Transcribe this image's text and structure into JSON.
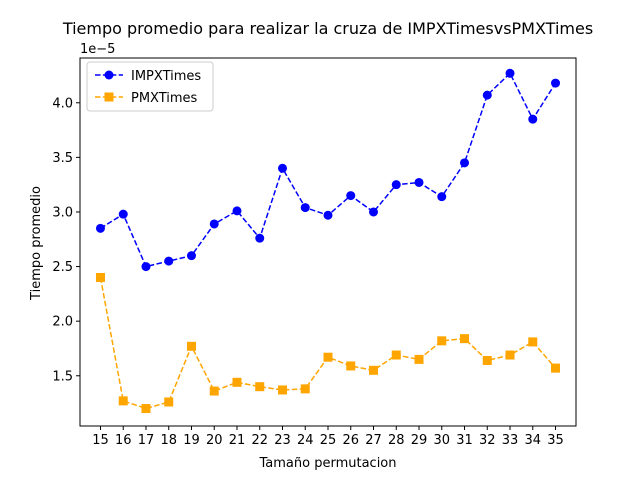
{
  "chart_data": {
    "type": "line",
    "title": "Tiempo promedio para realizar la cruza de IMPXTimesvsPMXTimes",
    "xlabel": "Tamaño permutacion",
    "ylabel": "Tiempo promedio",
    "y_offset_label": "1e−5",
    "x": [
      15,
      16,
      17,
      18,
      19,
      20,
      21,
      22,
      23,
      24,
      25,
      26,
      27,
      28,
      29,
      30,
      31,
      32,
      33,
      34,
      35
    ],
    "x_tick_labels": [
      "15",
      "16",
      "17",
      "18",
      "19",
      "20",
      "21",
      "22",
      "23",
      "24",
      "25",
      "26",
      "27",
      "28",
      "29",
      "30",
      "31",
      "32",
      "33",
      "34",
      "35"
    ],
    "y_ticks": [
      1.5,
      2.0,
      2.5,
      3.0,
      3.5,
      4.0
    ],
    "y_tick_labels": [
      "1.5",
      "2.0",
      "2.5",
      "3.0",
      "3.5",
      "4.0"
    ],
    "xlim": [
      14.1,
      35.9
    ],
    "ylim": [
      1.04,
      4.41
    ],
    "y_scale_note": "values in units of 1e-5",
    "grid": false,
    "legend_position": "top-left",
    "series": [
      {
        "name": "IMPXTimes",
        "color": "#0000ff",
        "marker": "circle",
        "linestyle": "dashed",
        "values": [
          2.85,
          2.98,
          2.5,
          2.55,
          2.6,
          2.89,
          3.01,
          2.76,
          3.4,
          3.04,
          2.97,
          3.15,
          3.0,
          3.25,
          3.27,
          3.14,
          3.45,
          4.07,
          4.27,
          3.85,
          4.18
        ]
      },
      {
        "name": "PMXTimes",
        "color": "#ffa500",
        "marker": "square",
        "linestyle": "dashed",
        "values": [
          2.4,
          1.27,
          1.2,
          1.26,
          1.77,
          1.36,
          1.44,
          1.4,
          1.37,
          1.38,
          1.67,
          1.59,
          1.55,
          1.69,
          1.65,
          1.82,
          1.84,
          1.64,
          1.69,
          1.81,
          1.57
        ]
      }
    ]
  }
}
